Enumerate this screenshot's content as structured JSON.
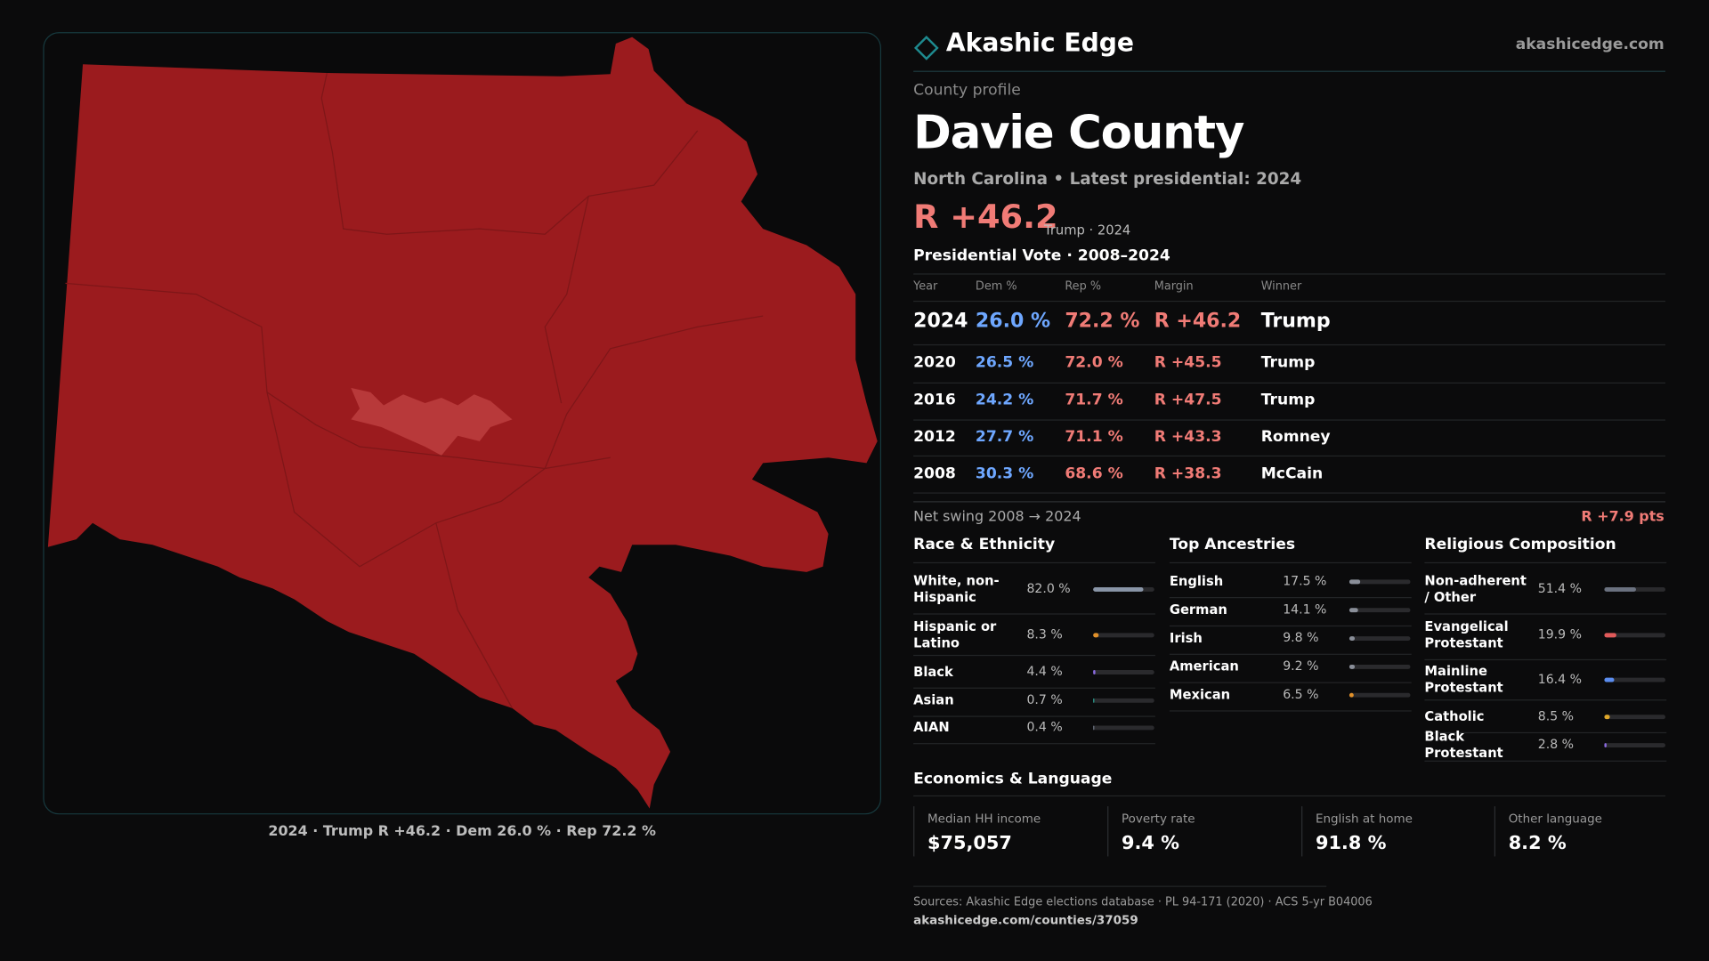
{
  "header": {
    "brand": "Akashic Edge",
    "site": "akashicedge.com"
  },
  "profile": {
    "kicker": "County profile",
    "name": "Davie County",
    "subtitle": "North Carolina • Latest presidential: 2024",
    "margin": "R +46.2",
    "margin_note": "Trump · 2024"
  },
  "map": {
    "caption": "2024 · Trump R +46.2 · Dem 26.0 % · Rep 72.2 %"
  },
  "votes": {
    "title": "Presidential Vote · 2008–2024",
    "columns": [
      "Year",
      "Dem %",
      "Rep %",
      "Margin",
      "Winner"
    ],
    "rows": [
      [
        "2024",
        "26.0 %",
        "72.2 %",
        "R +46.2",
        "Trump"
      ],
      [
        "2020",
        "26.5 %",
        "72.0 %",
        "R +45.5",
        "Trump"
      ],
      [
        "2016",
        "24.2 %",
        "71.7 %",
        "R +47.5",
        "Trump"
      ],
      [
        "2012",
        "27.7 %",
        "71.1 %",
        "R +43.3",
        "Romney"
      ],
      [
        "2008",
        "30.3 %",
        "68.6 %",
        "R +38.3",
        "McCain"
      ]
    ]
  },
  "swing": {
    "label": "Net swing 2008 → 2024",
    "value": "R +7.9 pts"
  },
  "bar_range": [
    0,
    100
  ],
  "race": {
    "title": "Race & Ethnicity",
    "rows": [
      {
        "label": "White, non-Hispanic",
        "value": {
          "value": 82.0,
          "label": "82.0 %"
        },
        "color": "#8a96a8"
      },
      {
        "label": "Hispanic or Latino",
        "value": {
          "value": 8.3,
          "label": "8.3 %"
        },
        "color": "#e0902a"
      },
      {
        "label": "Black",
        "value": {
          "value": 4.4,
          "label": "4.4 %"
        },
        "color": "#8a6adf"
      },
      {
        "label": "Asian",
        "value": {
          "value": 0.7,
          "label": "0.7 %"
        },
        "color": "#2a9d8f"
      },
      {
        "label": "AIAN",
        "value": {
          "value": 0.4,
          "label": "0.4 %"
        },
        "color": "#6b7280"
      }
    ]
  },
  "ancestry": {
    "title": "Top Ancestries",
    "rows": [
      {
        "label": "English",
        "value": {
          "value": 17.5,
          "label": "17.5 %"
        },
        "color": "#8a8f99"
      },
      {
        "label": "German",
        "value": {
          "value": 14.1,
          "label": "14.1 %"
        },
        "color": "#8a8f99"
      },
      {
        "label": "Irish",
        "value": {
          "value": 9.8,
          "label": "9.8 %"
        },
        "color": "#8a8f99"
      },
      {
        "label": "American",
        "value": {
          "value": 9.2,
          "label": "9.2 %"
        },
        "color": "#8a8f99"
      },
      {
        "label": "Mexican",
        "value": {
          "value": 6.5,
          "label": "6.5 %"
        },
        "color": "#e0902a"
      }
    ]
  },
  "religion": {
    "title": "Religious Composition",
    "rows": [
      {
        "label": "Non-adherent / Other",
        "value": {
          "value": 51.4,
          "label": "51.4 %"
        },
        "color": "#6b7280"
      },
      {
        "label": "Evangelical Protestant",
        "value": {
          "value": 19.9,
          "label": "19.9 %"
        },
        "color": "#e05a5a"
      },
      {
        "label": "Mainline Protestant",
        "value": {
          "value": 16.4,
          "label": "16.4 %"
        },
        "color": "#5b8def"
      },
      {
        "label": "Catholic",
        "value": {
          "value": 8.5,
          "label": "8.5 %"
        },
        "color": "#e0a82a"
      },
      {
        "label": "Black Protestant",
        "value": {
          "value": 2.8,
          "label": "2.8 %"
        },
        "color": "#8a6adf"
      }
    ]
  },
  "economics": {
    "title": "Economics & Language",
    "cards": [
      {
        "label": "Median HH income",
        "value": "$75,057"
      },
      {
        "label": "Poverty rate",
        "value": "9.4 %"
      },
      {
        "label": "English at home",
        "value": "91.8 %"
      },
      {
        "label": "Other language",
        "value": "8.2 %"
      }
    ]
  },
  "footer": {
    "sources": "Sources: Akashic Edge elections database · PL 94-171 (2020) · ACS 5-yr B04006",
    "url": "akashicedge.com/counties/37059"
  }
}
